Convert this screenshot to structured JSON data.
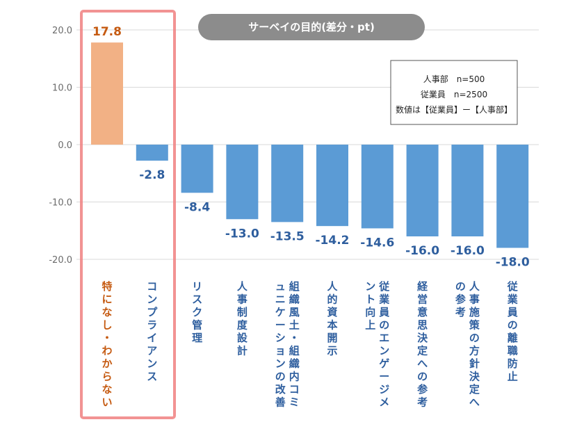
{
  "chart_data": {
    "type": "bar",
    "title": "サーベイの目的(差分・pt)",
    "categories": [
      "特になし・わからない",
      "コンプライアンス",
      "リスク管理",
      "人事制度設計",
      "組織風土・組織内コミュニケーションの改善",
      "人的資本開示",
      "従業員のエンゲージメント向上",
      "経営意思決定への参考",
      "人事施策の方針決定への参考",
      "従業員の離職防止"
    ],
    "values": [
      17.8,
      -2.8,
      -8.4,
      -13.0,
      -13.5,
      -14.2,
      -14.6,
      -16.0,
      -16.0,
      -18.0
    ],
    "value_labels": [
      "17.8",
      "-2.8",
      "-8.4",
      "-13.0",
      "-13.5",
      "-14.2",
      "-14.6",
      "-16.0",
      "-16.0",
      "-18.0"
    ],
    "ylim": [
      -20,
      20
    ],
    "yticks": [
      "20.0",
      "10.0",
      "0.0",
      "-10.0",
      "-20.0"
    ],
    "ytick_values": [
      20,
      10,
      0,
      -10,
      -20
    ],
    "grid": true,
    "legend": {
      "lines": [
        "人事部　n=500",
        "従業員　n=2500",
        "数値は【従業員】ー【人事部】"
      ],
      "placement": "top-right"
    },
    "highlight_index": 0
  },
  "colors": {
    "positive_bar": "#f2b185",
    "negative_bar": "#5b9bd5",
    "positive_text": "#c55a11",
    "negative_text": "#2e5e9e",
    "grid": "#d9d9d9",
    "title_pill": "#8c8c8c",
    "highlight_border": "#f08080"
  }
}
